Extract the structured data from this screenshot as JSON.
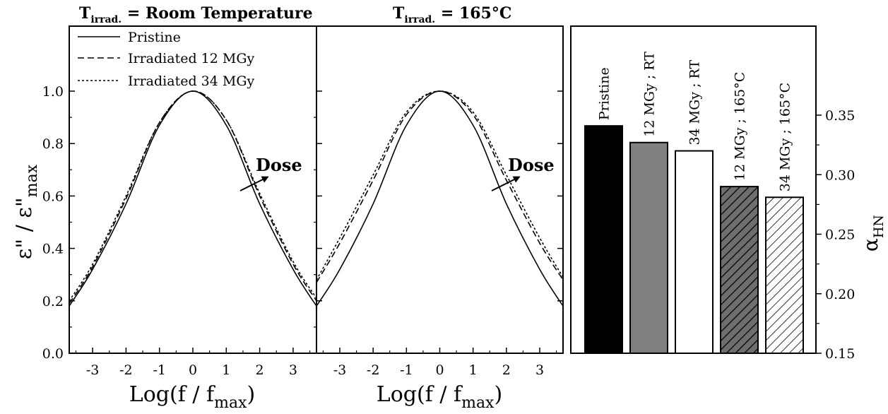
{
  "chart_data": [
    {
      "type": "line",
      "title_main": "T",
      "title_sub": "irrad.",
      "title_rest": " = Room Temperature",
      "xlabel_main": "Log(f / f",
      "xlabel_sub": "max",
      "xlabel_end": ")",
      "ylabel_main": "ε\" / ε\"",
      "ylabel_sub": "max",
      "xlim": [
        -3.7,
        3.7
      ],
      "ylim": [
        0.0,
        1.0
      ],
      "xticks": [
        "-3",
        "-2",
        "-1",
        "0",
        "1",
        "2",
        "3"
      ],
      "yticks": [
        "0.0",
        "0.2",
        "0.4",
        "0.6",
        "0.8",
        "1.0"
      ],
      "annotation": "Dose",
      "legend_position": "top-left",
      "series": [
        {
          "name": "Pristine",
          "style": "solid",
          "x": [
            -3.7,
            -3,
            -2,
            -1,
            0,
            1,
            2,
            3,
            3.7
          ],
          "y": [
            0.18,
            0.32,
            0.57,
            0.87,
            1.0,
            0.87,
            0.57,
            0.32,
            0.18
          ]
        },
        {
          "name": "Irradiated 12 MGy",
          "style": "dashed",
          "x": [
            -3.7,
            -3,
            -2,
            -1,
            0,
            1,
            2,
            3,
            3.7
          ],
          "y": [
            0.19,
            0.33,
            0.59,
            0.88,
            1.0,
            0.89,
            0.6,
            0.34,
            0.2
          ]
        },
        {
          "name": "Irradiated 34 MGy",
          "style": "dotted",
          "x": [
            -3.7,
            -3,
            -2,
            -1,
            0,
            1,
            2,
            3,
            3.7
          ],
          "y": [
            0.2,
            0.34,
            0.6,
            0.88,
            1.0,
            0.89,
            0.61,
            0.35,
            0.21
          ]
        }
      ]
    },
    {
      "type": "line",
      "title_main": "T",
      "title_sub": "irrad.",
      "title_rest": " = 165°C",
      "xlabel_main": "Log(f / f",
      "xlabel_sub": "max",
      "xlabel_end": ")",
      "xlim": [
        -3.7,
        3.7
      ],
      "ylim": [
        0.0,
        1.0
      ],
      "xticks": [
        "-3",
        "-2",
        "-1",
        "0",
        "1",
        "2",
        "3"
      ],
      "annotation": "Dose",
      "series": [
        {
          "name": "Pristine",
          "style": "solid",
          "x": [
            -3.7,
            -3,
            -2,
            -1,
            0,
            1,
            2,
            3,
            3.7
          ],
          "y": [
            0.18,
            0.32,
            0.57,
            0.87,
            1.0,
            0.87,
            0.57,
            0.32,
            0.18
          ]
        },
        {
          "name": "Irradiated 12 MGy",
          "style": "dashed",
          "x": [
            -3.7,
            -3,
            -2,
            -1,
            0,
            1,
            2,
            3,
            3.7
          ],
          "y": [
            0.27,
            0.42,
            0.66,
            0.91,
            1.0,
            0.91,
            0.66,
            0.42,
            0.28
          ]
        },
        {
          "name": "Irradiated 34 MGy",
          "style": "dotted",
          "x": [
            -3.7,
            -3,
            -2,
            -1,
            0,
            1,
            2,
            3,
            3.7
          ],
          "y": [
            0.28,
            0.44,
            0.68,
            0.92,
            1.0,
            0.92,
            0.68,
            0.44,
            0.29
          ]
        }
      ]
    },
    {
      "type": "bar",
      "ylabel_main": "α",
      "ylabel_sub": "HN",
      "ylim": [
        0.15,
        0.37
      ],
      "yticks": [
        "0.15",
        "0.20",
        "0.25",
        "0.30",
        "0.35"
      ],
      "categories": [
        "Pristine",
        "12 MGy ; RT",
        "34 MGy ; RT",
        "12 MGy ; 165°C",
        "34 MGy ; 165°C"
      ],
      "values": [
        0.341,
        0.327,
        0.32,
        0.29,
        0.281
      ],
      "fills": [
        "solid-black",
        "solid-gray",
        "white",
        "hatched-dark",
        "hatched-light"
      ],
      "colors": {
        "black": "#000000",
        "gray": "#808080",
        "dark_hatch_bg": "#6e6e6e",
        "white": "#ffffff"
      }
    }
  ]
}
